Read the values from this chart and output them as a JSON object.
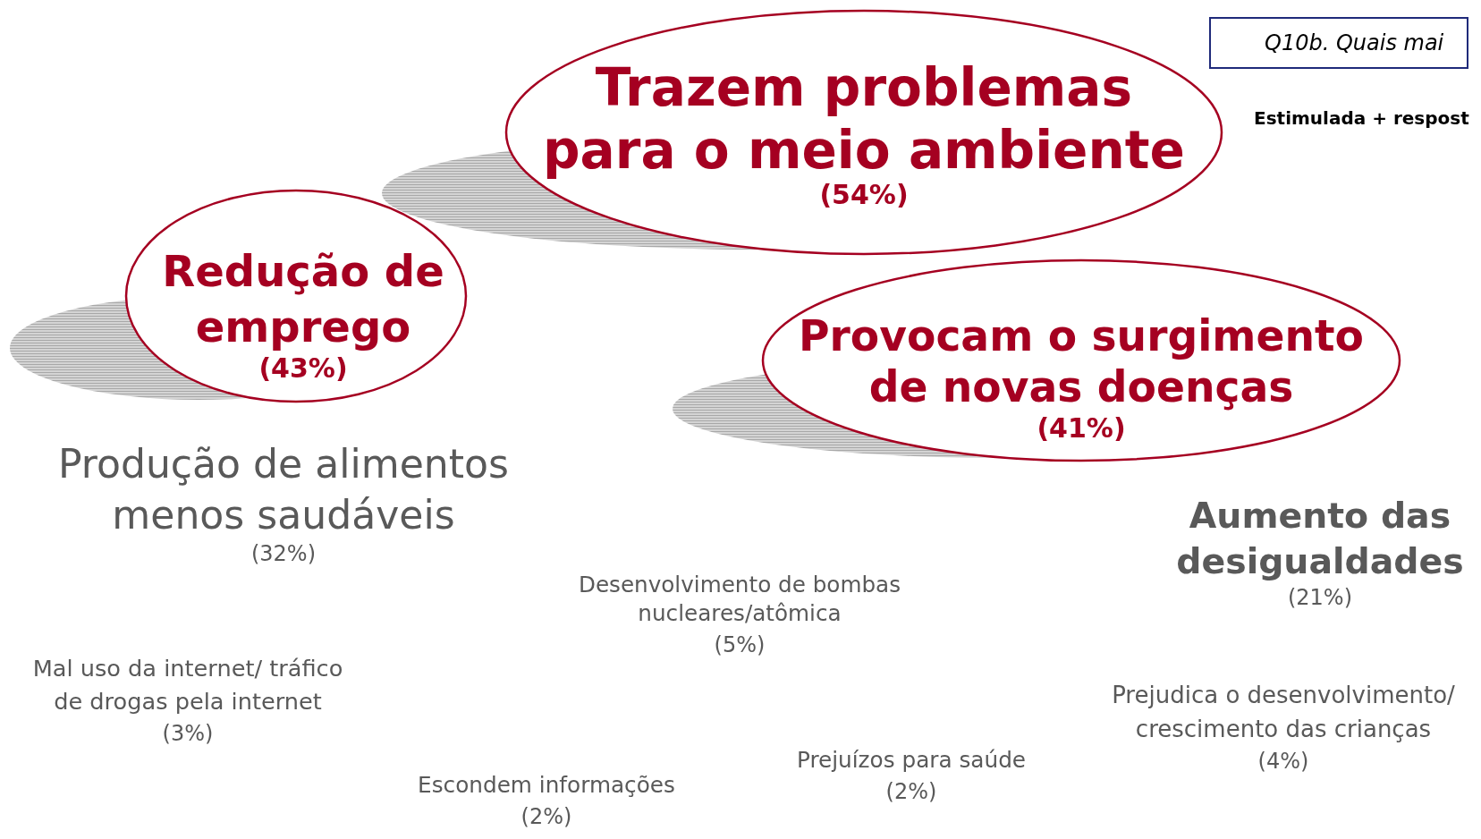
{
  "chart_data": {
    "type": "other",
    "title": "Q10b. Quais mai",
    "subtitle": "Estimulada + respost",
    "categories": [
      "Trazem problemas\npara o meio ambiente",
      "Redução de\nemprego",
      "Provocam o surgimento\nde novas doenças",
      "Produção de alimentos\nmenos saudáveis",
      "Aumento das\ndesigualdades",
      "Desenvolvimento de bombas\nnucleares/atômica",
      "Mal uso da internet/ tráfico\nde drogas pela internet",
      "Prejudica o desenvolvimento/\ncrescimento das crianças",
      "Prejuízos para saúde",
      "Escondem informações"
    ],
    "series": [
      {
        "color": "#a50021",
        "values": [
          54,
          43,
          41,
          null,
          null,
          null,
          null,
          null,
          null,
          null
        ],
        "value_labels": [
          "(54%)",
          "(43%)",
          "(41%)",
          null,
          null,
          null,
          null,
          null,
          null,
          null
        ]
      },
      {
        "color": "#595959",
        "values": [
          null,
          null,
          null,
          32,
          21,
          5,
          3,
          4,
          2,
          2
        ],
        "value_labels": [
          null,
          null,
          null,
          "(32%)",
          "(21%)",
          "(5%)",
          "(3%)",
          "(4%)",
          "(2%)",
          "(2%)"
        ]
      }
    ]
  }
}
